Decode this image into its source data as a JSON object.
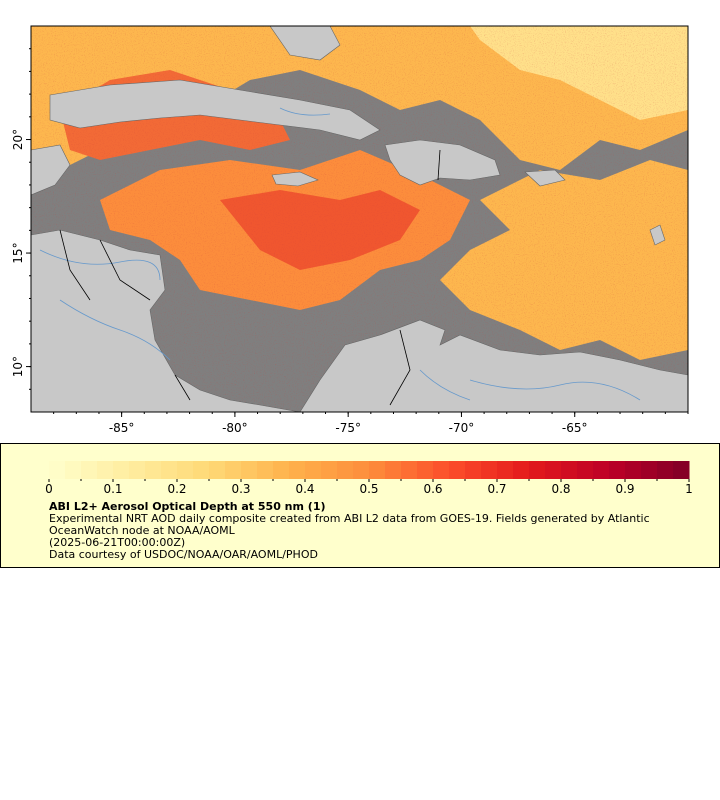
{
  "map": {
    "x_axis": {
      "ticks": [
        "-85°",
        "-80°",
        "-75°",
        "-70°",
        "-65°"
      ],
      "lon_values": [
        -85,
        -80,
        -75,
        -70,
        -65
      ],
      "lon_range": [
        -89,
        -60
      ]
    },
    "y_axis": {
      "ticks": [
        "10°",
        "15°",
        "20°"
      ],
      "lat_values": [
        10,
        15,
        20
      ],
      "lat_range": [
        8,
        25
      ]
    },
    "colors": {
      "land": "#c8c8c8",
      "no_data": "#7f7f7f",
      "coast": "#666666",
      "border": "#000000",
      "rivers": "#6699cc"
    }
  },
  "legend": {
    "tick_labels": [
      "0",
      "0.1",
      "0.2",
      "0.3",
      "0.4",
      "0.5",
      "0.6",
      "0.7",
      "0.8",
      "0.9",
      "1"
    ],
    "range": [
      0,
      1
    ],
    "palette": [
      "#ffffcc",
      "#ffeda0",
      "#fed976",
      "#feb24c",
      "#fd8d3c",
      "#fc4e2a",
      "#e31a1c",
      "#bd0026",
      "#800026"
    ],
    "title": "ABI L2+ Aerosol Optical Depth at 550 nm (1)",
    "line1": "Experimental NRT AOD daily composite created from ABI L2 data from GOES-19. Fields generated by Atlantic OceanWatch node at NOAA/AOML",
    "line2": "(2025-06-21T00:00:00Z)",
    "line3": "Data courtesy of USDOC/NOAA/OAR/AOML/PHOD"
  }
}
